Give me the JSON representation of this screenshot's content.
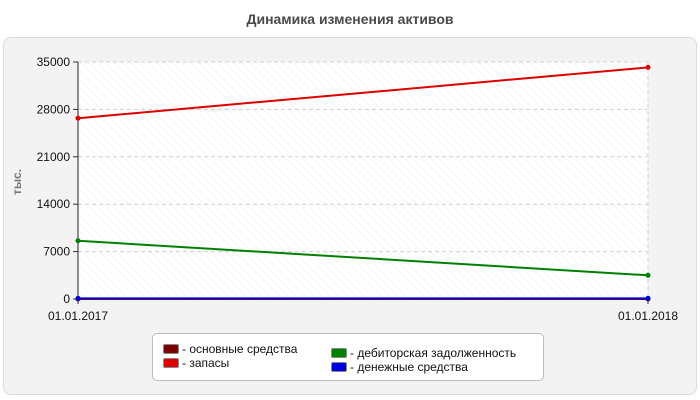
{
  "chart_data": {
    "type": "line",
    "title": "Динамика изменения активов",
    "ylabel": "тыс.",
    "xlabel": "",
    "categories": [
      "01.01.2017",
      "01.01.2018"
    ],
    "ylim": [
      0,
      35000
    ],
    "yticks": [
      0,
      7000,
      14000,
      21000,
      28000,
      35000
    ],
    "grid": true,
    "legend_position": "bottom",
    "series": [
      {
        "name": "основные средства",
        "color": "#7b0000",
        "values": [
          0,
          0
        ]
      },
      {
        "name": "запасы",
        "color": "#dd0000",
        "values": [
          26700,
          34200
        ]
      },
      {
        "name": "дебиторская задолженность",
        "color": "#008000",
        "values": [
          8600,
          3500
        ]
      },
      {
        "name": "денежные средства",
        "color": "#0000dd",
        "values": [
          100,
          100
        ]
      }
    ]
  }
}
